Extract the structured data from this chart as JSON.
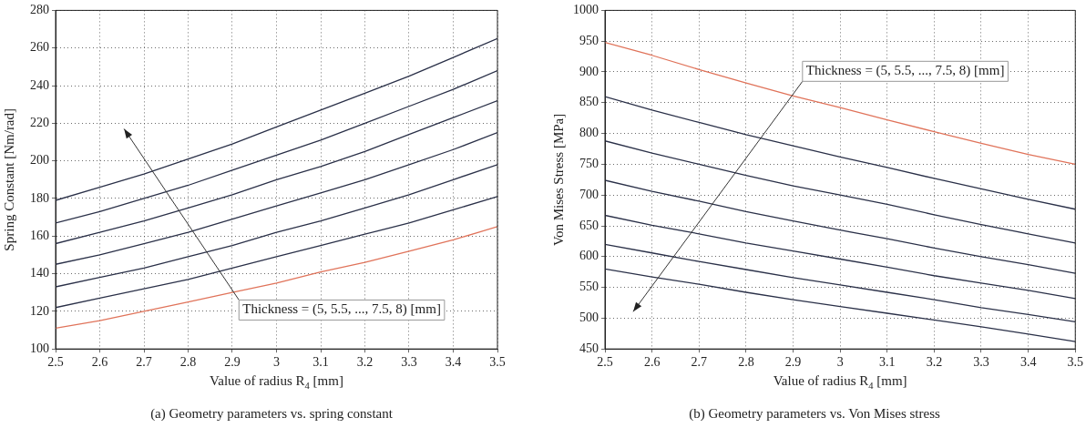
{
  "chart_data": [
    {
      "type": "line",
      "xlabel": "Value of radius R$_{4}$ [mm]",
      "ylabel": "Spring Constant [Nm/rad]",
      "x": [
        2.5,
        2.6,
        2.7,
        2.8,
        2.9,
        3.0,
        3.1,
        3.2,
        3.3,
        3.4,
        3.5
      ],
      "xlim": [
        2.5,
        3.5
      ],
      "xticks": [
        2.5,
        2.6,
        2.7,
        2.8,
        2.9,
        3,
        3.1,
        3.2,
        3.3,
        3.4,
        3.5
      ],
      "ylim": [
        100,
        280
      ],
      "yticks": [
        100,
        120,
        140,
        160,
        180,
        200,
        220,
        240,
        260,
        280
      ],
      "grid": true,
      "marker": "none",
      "line_style": "solid",
      "annotations": [
        "Thickness = (5, 5.5, ..., 7.5, 8) [mm]",
        "(a) Geometry parameters vs. spring constant"
      ],
      "series": [
        {
          "color": "#2a3048",
          "values": [
            179,
            186,
            193,
            201,
            209,
            218,
            227,
            236,
            245,
            255,
            265
          ]
        },
        {
          "color": "#2a3048",
          "values": [
            167,
            173,
            180,
            187,
            195,
            203,
            211,
            220,
            229,
            238,
            248
          ]
        },
        {
          "color": "#2a3048",
          "values": [
            156,
            162,
            168,
            175,
            182,
            190,
            197,
            205,
            214,
            223,
            232
          ]
        },
        {
          "color": "#2a3048",
          "values": [
            145,
            150,
            156,
            162,
            169,
            176,
            183,
            190,
            198,
            206,
            215
          ]
        },
        {
          "color": "#2a3048",
          "values": [
            133,
            138,
            143,
            149,
            155,
            162,
            168,
            175,
            182,
            190,
            198
          ]
        },
        {
          "color": "#2a3048",
          "values": [
            122,
            127,
            132,
            137,
            143,
            149,
            155,
            161,
            167,
            174,
            181
          ]
        },
        {
          "color": "#e0735a",
          "values": [
            111,
            115,
            120,
            125,
            130,
            135,
            141,
            146,
            152,
            158,
            165
          ]
        }
      ]
    },
    {
      "type": "line",
      "xlabel": "Value of radius R$_{4}$ [mm]",
      "ylabel": "Von Mises Stress [MPa]",
      "x": [
        2.5,
        2.6,
        2.7,
        2.8,
        2.9,
        3.0,
        3.1,
        3.2,
        3.3,
        3.4,
        3.5
      ],
      "xlim": [
        2.5,
        3.5
      ],
      "xticks": [
        2.5,
        2.6,
        2.7,
        2.8,
        2.9,
        3,
        3.1,
        3.2,
        3.3,
        3.4,
        3.5
      ],
      "ylim": [
        450,
        1000
      ],
      "yticks": [
        450,
        500,
        550,
        600,
        650,
        700,
        750,
        800,
        850,
        900,
        950,
        1000
      ],
      "grid": true,
      "marker": "none",
      "line_style": "solid",
      "annotations": [
        "Thickness = (5, 5.5, ..., 7.5, 8) [mm]",
        "(b) Geometry parameters vs. Von Mises stress"
      ],
      "series": [
        {
          "color": "#e0735a",
          "values": [
            948,
            927,
            904,
            882,
            861,
            842,
            822,
            803,
            784,
            766,
            750
          ]
        },
        {
          "color": "#2a3048",
          "values": [
            860,
            838,
            818,
            798,
            780,
            762,
            745,
            727,
            710,
            693,
            677
          ]
        },
        {
          "color": "#2a3048",
          "values": [
            788,
            768,
            750,
            732,
            715,
            700,
            685,
            668,
            652,
            637,
            622
          ]
        },
        {
          "color": "#2a3048",
          "values": [
            724,
            706,
            690,
            673,
            658,
            643,
            629,
            614,
            600,
            587,
            573
          ]
        },
        {
          "color": "#2a3048",
          "values": [
            667,
            651,
            637,
            622,
            609,
            596,
            583,
            569,
            557,
            545,
            532
          ]
        },
        {
          "color": "#2a3048",
          "values": [
            620,
            606,
            592,
            579,
            566,
            554,
            542,
            530,
            517,
            506,
            494
          ]
        },
        {
          "color": "#2a3048",
          "values": [
            580,
            567,
            555,
            542,
            530,
            519,
            508,
            497,
            486,
            474,
            462
          ]
        }
      ]
    }
  ]
}
